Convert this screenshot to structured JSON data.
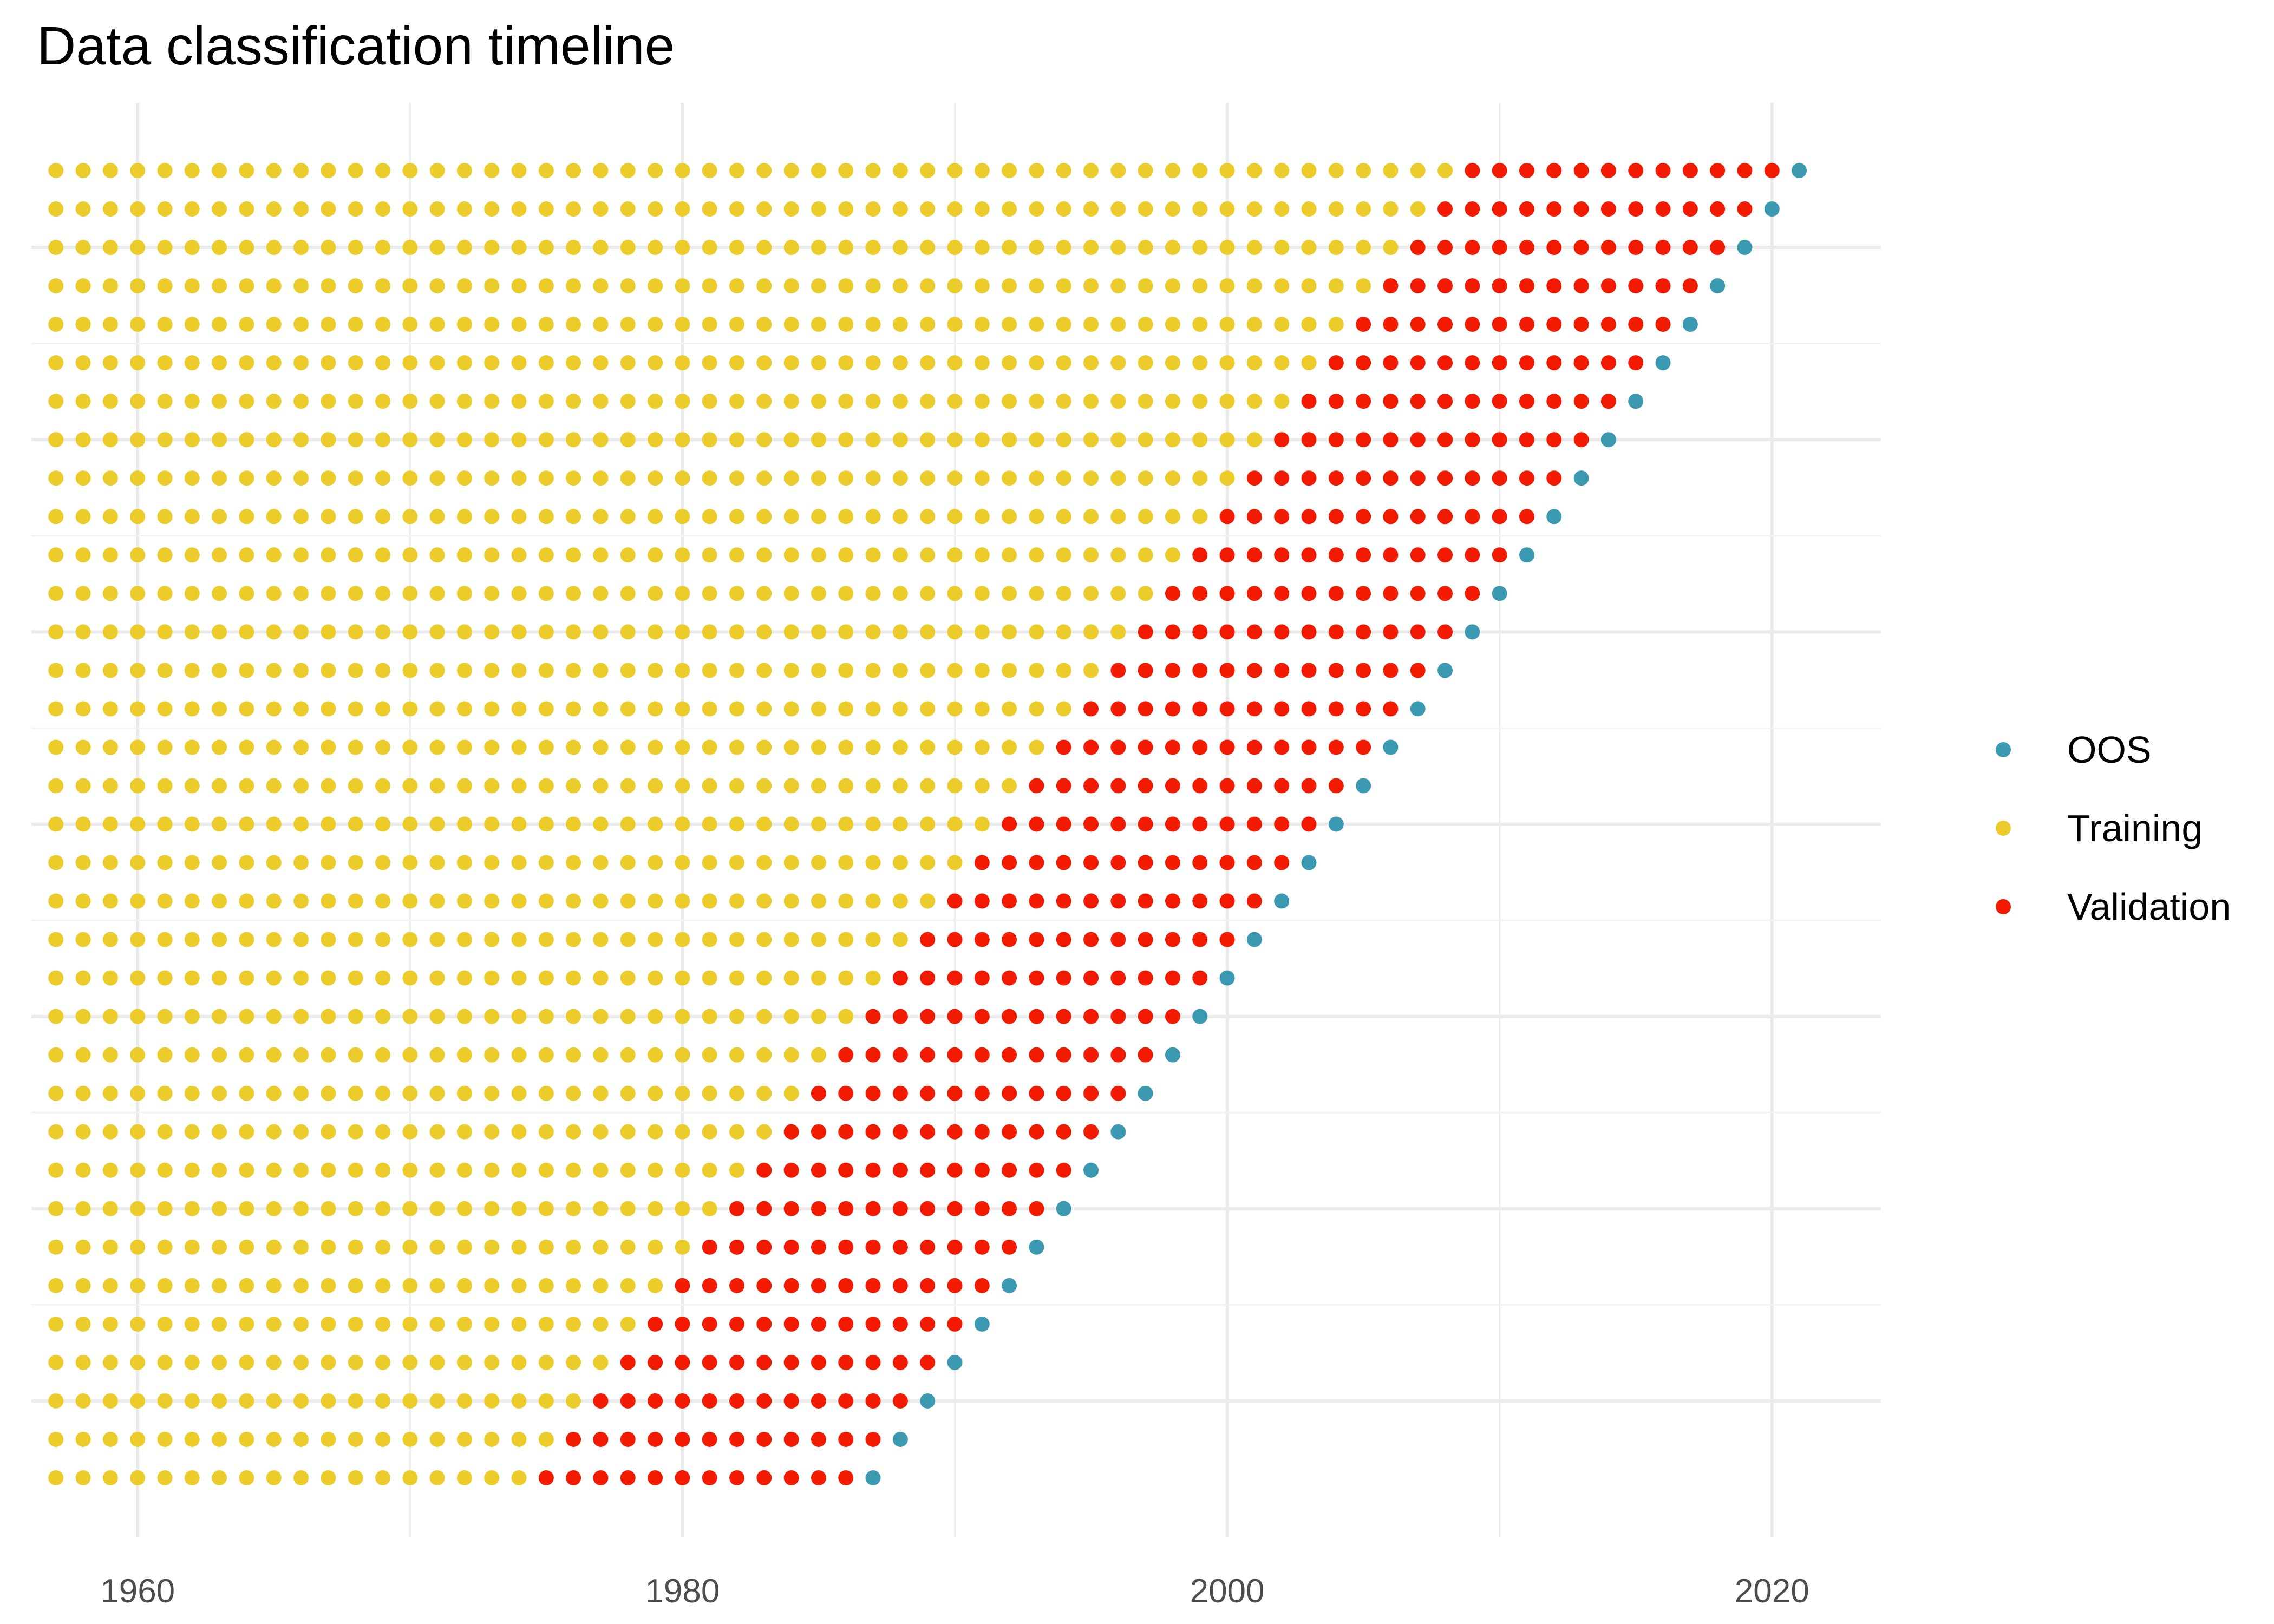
{
  "chart_data": {
    "type": "scatter",
    "title": "Data classification timeline",
    "xlabel": "",
    "ylabel": "",
    "xlim": [
      1956.1,
      2024.0
    ],
    "x_ticks": [
      1960,
      1980,
      2000,
      2020
    ],
    "y_ticks": [],
    "grid": true,
    "legend_position": "right",
    "rows": {
      "count": 35,
      "start_year": 1957,
      "first_validation_year_bottom_row": 1975,
      "oos_year_bottom_row": 1987,
      "validation_years_per_row": 12,
      "note_order": "rows from bottom (1) to top (35)"
    },
    "series": [
      {
        "name": "OOS",
        "color": "#3b9ab2"
      },
      {
        "name": "Training",
        "color": "#ebcc2a"
      },
      {
        "name": "Validation",
        "color": "#f21a00"
      }
    ],
    "legend": {
      "items": [
        "OOS",
        "Training",
        "Validation"
      ]
    }
  }
}
